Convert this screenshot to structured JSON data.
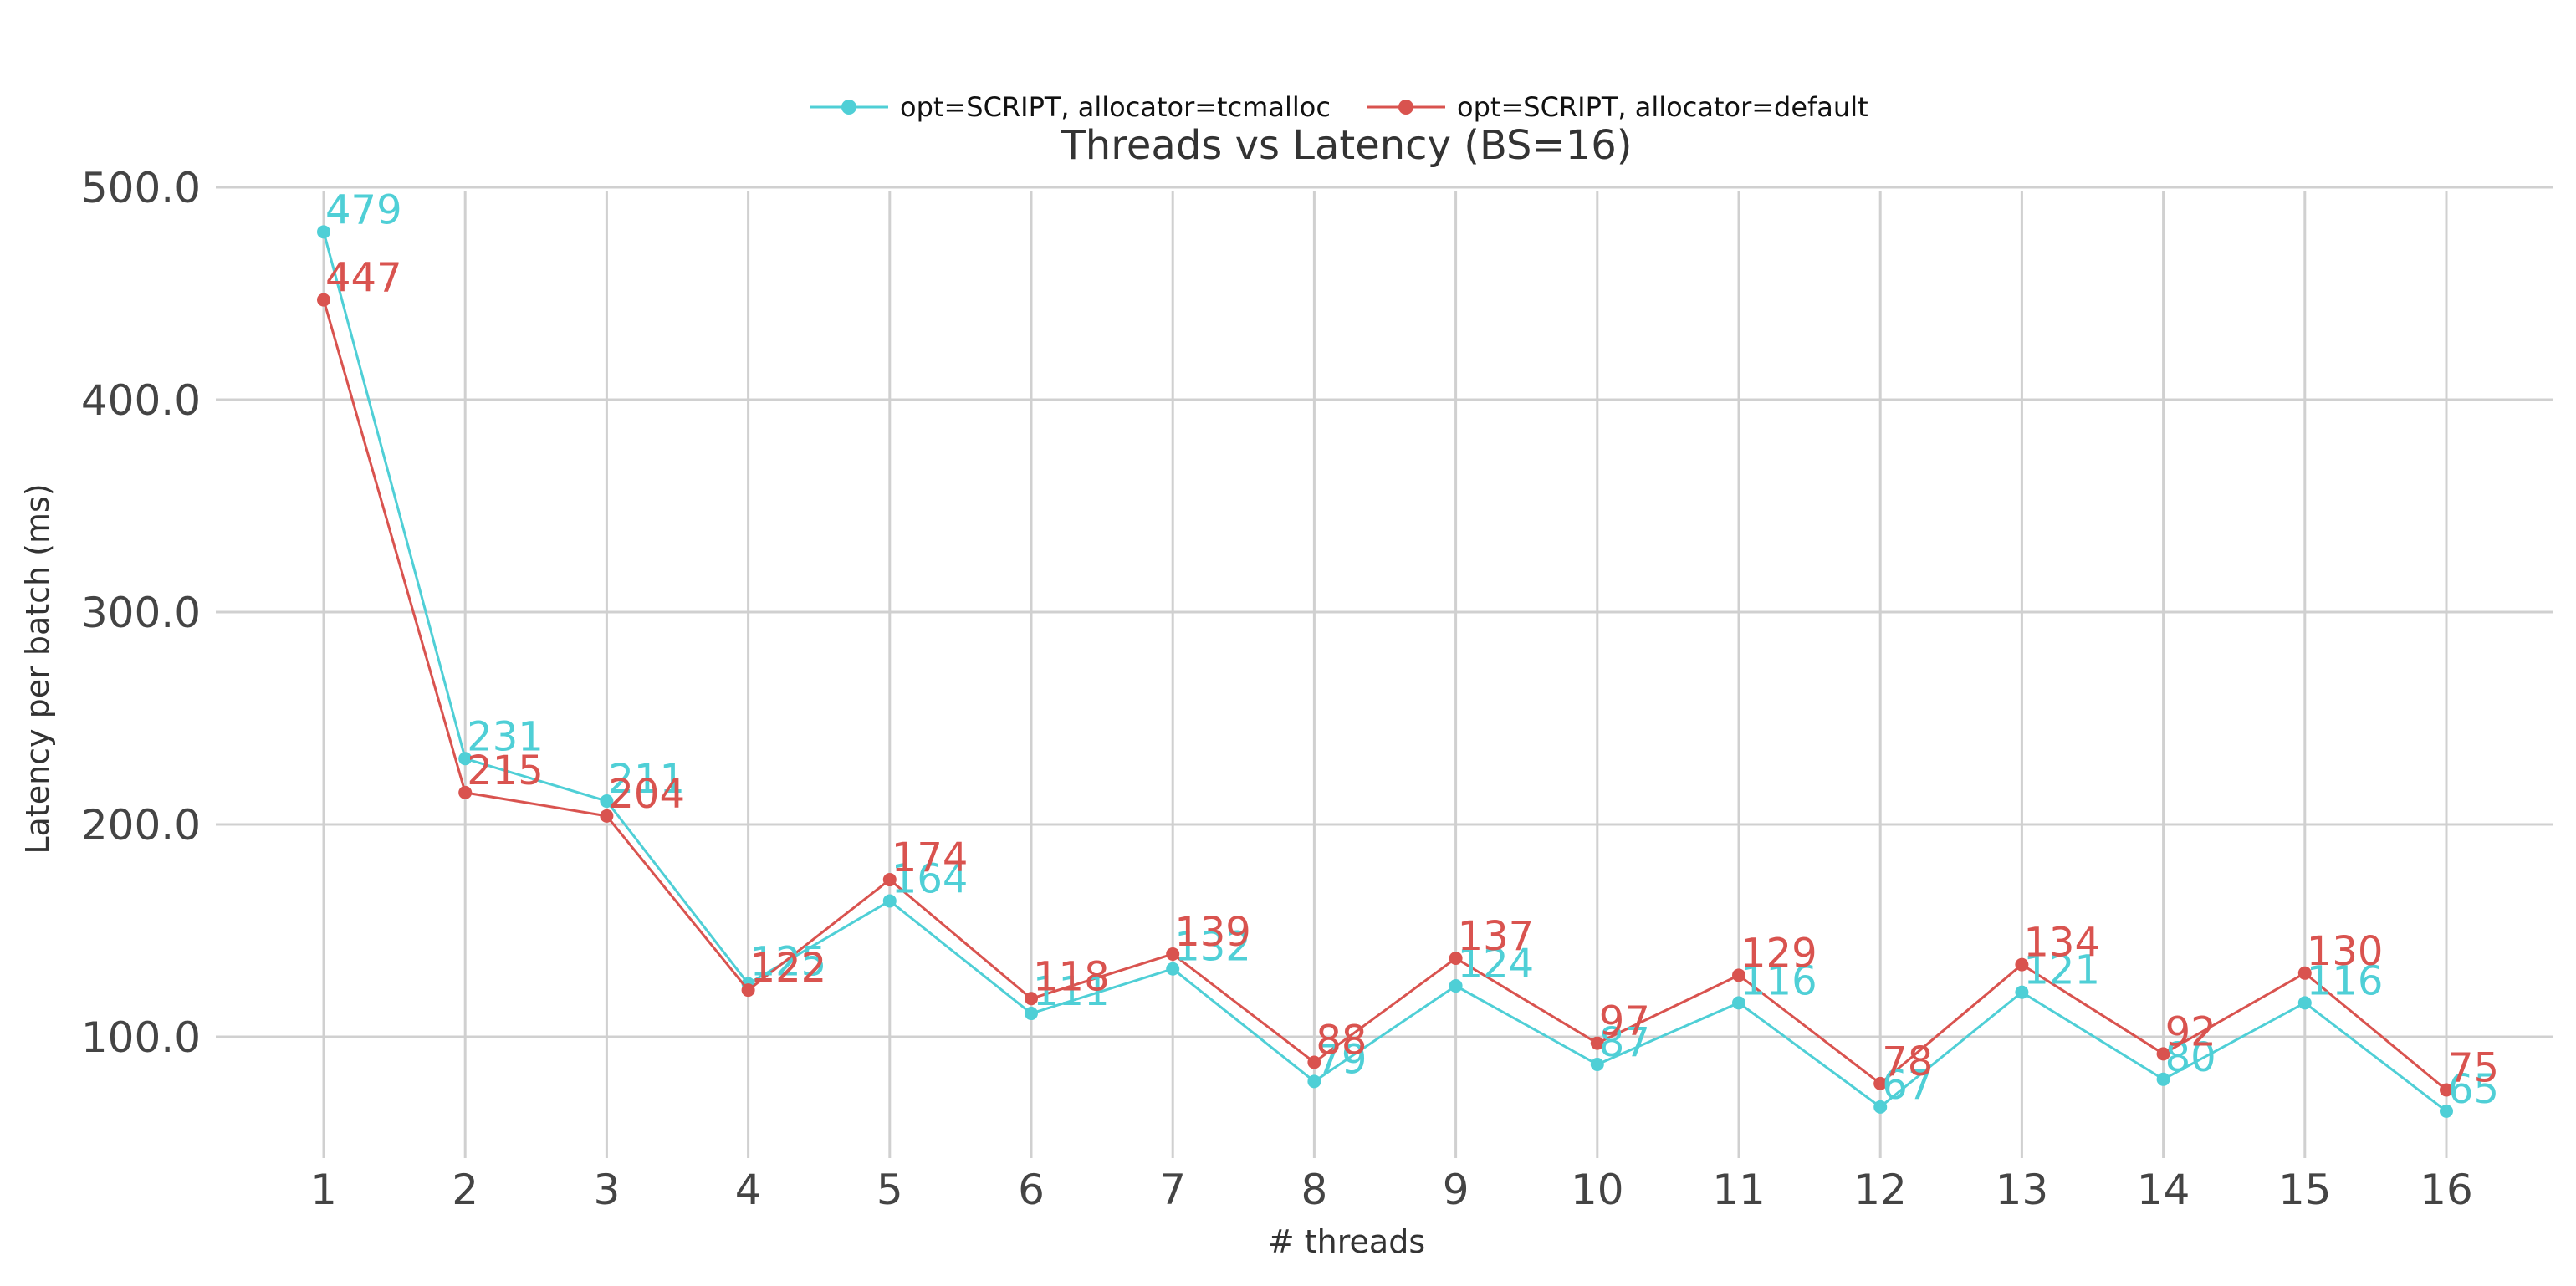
{
  "chart_data": {
    "type": "line",
    "title": "Threads vs Latency (BS=16)",
    "xlabel": "# threads",
    "ylabel": "Latency per batch (ms)",
    "categories": [
      "1",
      "2",
      "3",
      "4",
      "5",
      "6",
      "7",
      "8",
      "9",
      "10",
      "11",
      "12",
      "13",
      "14",
      "15",
      "16"
    ],
    "yticks": [
      "100.0",
      "200.0",
      "300.0",
      "400.0",
      "500.0"
    ],
    "ylim": [
      40,
      500
    ],
    "grid": true,
    "legend_position": "top-center",
    "series": [
      {
        "name": "opt=SCRIPT, allocator=tcmalloc",
        "color": "#4fcfd6",
        "values": [
          479,
          231,
          211,
          125,
          164,
          111,
          132,
          79,
          124,
          87,
          116,
          67,
          121,
          80,
          116,
          65
        ]
      },
      {
        "name": "opt=SCRIPT, allocator=default",
        "color": "#d9534f",
        "values": [
          447,
          215,
          204,
          122,
          174,
          118,
          139,
          88,
          137,
          97,
          129,
          78,
          134,
          92,
          130,
          75
        ]
      }
    ]
  }
}
